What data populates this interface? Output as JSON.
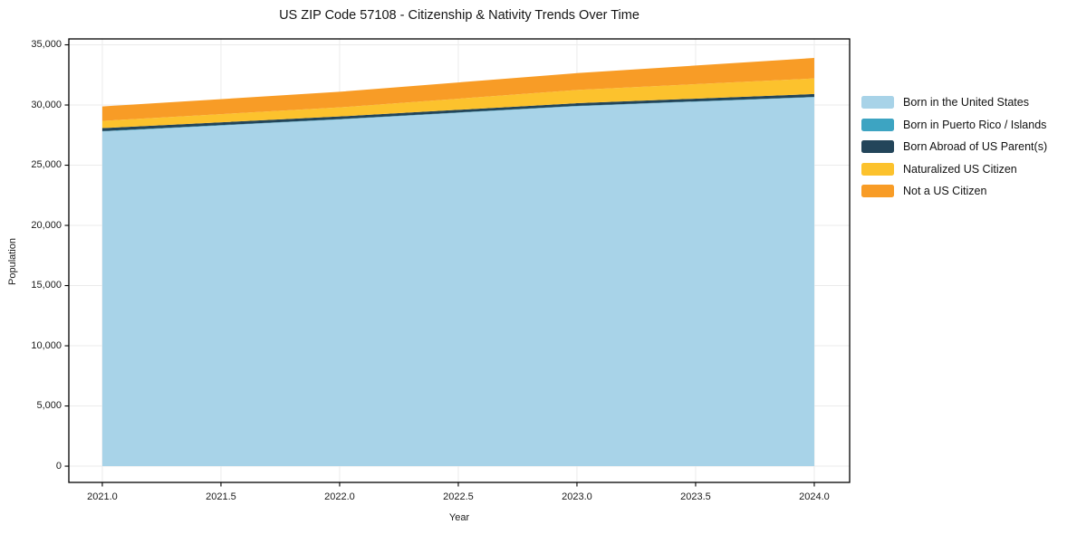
{
  "title": "US ZIP Code 57108 - Citizenship & Nativity Trends Over Time",
  "chart_data": {
    "type": "area",
    "stacked": true,
    "title": "US ZIP Code 57108 - Citizenship & Nativity Trends Over Time",
    "xlabel": "Year",
    "ylabel": "Population",
    "x": [
      2021,
      2022,
      2023,
      2024
    ],
    "series": [
      {
        "name": "Born in the United States",
        "color": "#A8D3E8",
        "values": [
          27800,
          28800,
          29900,
          30650
        ]
      },
      {
        "name": "Born in Puerto Rico / Islands",
        "color": "#3DA4C2",
        "values": [
          30,
          30,
          30,
          30
        ]
      },
      {
        "name": "Born Abroad of US Parent(s)",
        "color": "#23455A",
        "values": [
          250,
          220,
          220,
          230
        ]
      },
      {
        "name": "Naturalized US Citizen",
        "color": "#FCC22D",
        "values": [
          600,
          750,
          1100,
          1300
        ]
      },
      {
        "name": "Not a US Citizen",
        "color": "#F89C26",
        "values": [
          1200,
          1300,
          1400,
          1700
        ]
      }
    ],
    "totals": [
      29880,
      31100,
      32650,
      33910
    ],
    "x_ticks": [
      2021.0,
      2021.5,
      2022.0,
      2022.5,
      2023.0,
      2023.5,
      2024.0
    ],
    "x_tick_labels": [
      "2021.0",
      "2021.5",
      "2022.0",
      "2022.5",
      "2023.0",
      "2023.5",
      "2024.0"
    ],
    "y_ticks": [
      0,
      5000,
      10000,
      15000,
      20000,
      25000,
      30000,
      35000
    ],
    "y_tick_labels": [
      "0",
      "5,000",
      "10,000",
      "15,000",
      "20,000",
      "25,000",
      "30,000",
      "35,000"
    ],
    "xlim": [
      2020.859,
      2024.149
    ],
    "ylim": [
      -1350,
      35490
    ],
    "grid": true,
    "grid_color": "#ebebeb",
    "spine_color": "#000000",
    "legend_position": "right-outside"
  }
}
